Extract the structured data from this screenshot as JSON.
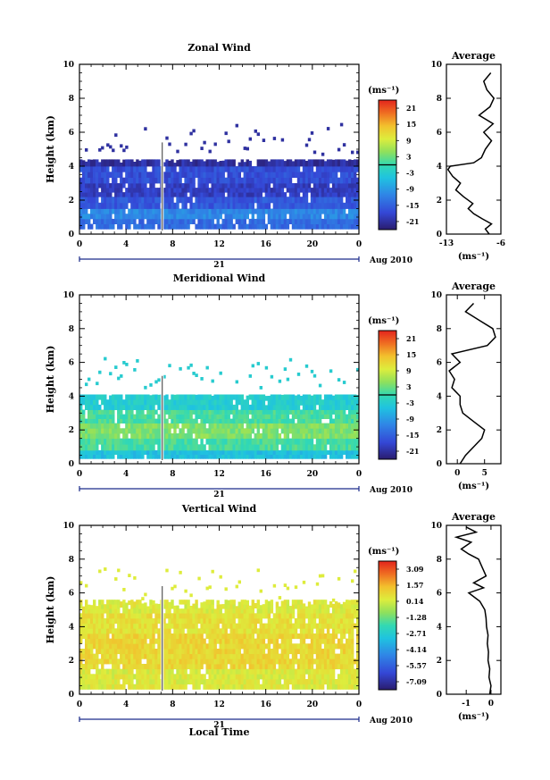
{
  "figure": {
    "xlabel": "Local Time",
    "date_label": "Aug 2010",
    "day_label": "21",
    "unit": "(ms⁻¹)",
    "unit_profile": "(ms⁻¹)",
    "avg_title": "Average"
  },
  "chart_data": [
    {
      "type": "heatmap",
      "title": "Zonal Wind",
      "ylabel": "Height (km)",
      "xlim": [
        0,
        24
      ],
      "ylim": [
        0,
        10
      ],
      "xticks": [
        "0",
        "4",
        "8",
        "12",
        "16",
        "20",
        "0"
      ],
      "yticks": [
        "0",
        "2",
        "4",
        "6",
        "8",
        "10"
      ],
      "colorbar": {
        "ticks": [
          "21",
          "15",
          "9",
          "3",
          "-3",
          "-9",
          "-15",
          "-21"
        ],
        "range": [
          -24,
          24
        ],
        "zero_line": 0
      },
      "field": [
        {
          "h0": 0.3,
          "h1": 0.9,
          "v": -14
        },
        {
          "h0": 0.9,
          "h1": 1.5,
          "v": -11
        },
        {
          "h0": 1.5,
          "h1": 2.2,
          "v": -16
        },
        {
          "h0": 2.2,
          "h1": 3.0,
          "v": -19
        },
        {
          "h0": 3.0,
          "h1": 4.0,
          "v": -17
        },
        {
          "h0": 4.0,
          "h1": 4.4,
          "v": -21
        }
      ],
      "top_height": 4.2,
      "profile": {
        "xlim": [
          -13,
          -6
        ],
        "xticks": [
          "-13",
          "-6"
        ],
        "heights": [
          0,
          0.3,
          0.6,
          0.9,
          1.2,
          1.5,
          1.8,
          2.2,
          2.6,
          3.0,
          3.4,
          3.8,
          4.0,
          4.2,
          4.5,
          5.0,
          5.5,
          6.0,
          6.5,
          7.0,
          7.5,
          8.0,
          8.5,
          9.0,
          9.5
        ],
        "values": [
          -7.5,
          -8.0,
          -7.2,
          -8.4,
          -9.5,
          -10.2,
          -9.6,
          -10.8,
          -11.8,
          -11.2,
          -12.2,
          -12.8,
          -12.5,
          -9.5,
          -8.5,
          -8.0,
          -7.2,
          -8.2,
          -7.0,
          -8.8,
          -7.4,
          -6.9,
          -7.8,
          -8.2,
          -7.3
        ]
      }
    },
    {
      "type": "heatmap",
      "title": "Meridional Wind",
      "ylabel": "Height (km)",
      "xlim": [
        0,
        24
      ],
      "ylim": [
        0,
        10
      ],
      "xticks": [
        "0",
        "4",
        "8",
        "12",
        "16",
        "20",
        "0"
      ],
      "yticks": [
        "0",
        "2",
        "4",
        "6",
        "8",
        "10"
      ],
      "colorbar": {
        "ticks": [
          "21",
          "15",
          "9",
          "3",
          "-3",
          "-9",
          "-15",
          "-21"
        ],
        "range": [
          -24,
          24
        ],
        "zero_line": 0
      },
      "field": [
        {
          "h0": 0.3,
          "h1": 0.8,
          "v": -5
        },
        {
          "h0": 0.8,
          "h1": 1.5,
          "v": 1
        },
        {
          "h0": 1.5,
          "h1": 2.4,
          "v": 4
        },
        {
          "h0": 2.4,
          "h1": 3.2,
          "v": 1
        },
        {
          "h0": 3.2,
          "h1": 4.1,
          "v": -3
        }
      ],
      "top_height": 4.0,
      "profile": {
        "xlim": [
          -2,
          8
        ],
        "xticks": [
          "0",
          "5"
        ],
        "heights": [
          0,
          0.5,
          1.0,
          1.5,
          2.0,
          2.5,
          3.0,
          3.5,
          4.0,
          4.5,
          5.0,
          5.5,
          6.0,
          6.5,
          7.0,
          7.5,
          8.0,
          8.5,
          9.0,
          9.5
        ],
        "values": [
          0.5,
          1.5,
          3.0,
          4.5,
          5.0,
          3.0,
          1.0,
          0.5,
          0.5,
          -1.0,
          -0.5,
          -1.5,
          0.5,
          -1.0,
          5.5,
          7.0,
          6.5,
          4.0,
          1.5,
          3.0
        ]
      }
    },
    {
      "type": "heatmap",
      "title": "Vertical Wind",
      "ylabel": "Height (km)",
      "xlabel": "Local Time",
      "xlim": [
        0,
        24
      ],
      "ylim": [
        0,
        10
      ],
      "xticks": [
        "0",
        "4",
        "8",
        "12",
        "16",
        "20",
        "0"
      ],
      "yticks": [
        "0",
        "2",
        "4",
        "6",
        "8",
        "10"
      ],
      "colorbar": {
        "ticks": [
          "3.09",
          "1.57",
          "0.14",
          "-1.28",
          "-2.71",
          "-4.14",
          "-5.57",
          "-7.09"
        ],
        "range": [
          -8.0,
          3.8
        ],
        "zero_line": null
      },
      "field": [
        {
          "h0": 0.3,
          "h1": 1.5,
          "v": 0.3
        },
        {
          "h0": 1.5,
          "h1": 3.6,
          "v": 0.9
        },
        {
          "h0": 3.6,
          "h1": 4.8,
          "v": 0.6
        },
        {
          "h0": 4.8,
          "h1": 5.6,
          "v": 0.3
        }
      ],
      "top_height": 5.2,
      "profile": {
        "xlim": [
          -1.8,
          0.4
        ],
        "xticks": [
          "-1",
          "0"
        ],
        "heights": [
          0,
          0.5,
          1.0,
          1.5,
          2.0,
          2.5,
          3.0,
          3.5,
          4.0,
          4.5,
          5.0,
          5.5,
          6.0,
          6.3,
          6.6,
          7.0,
          7.5,
          8.0,
          8.3,
          8.6,
          9.0,
          9.3,
          9.6,
          9.9
        ],
        "values": [
          -0.05,
          0.0,
          -0.08,
          -0.05,
          -0.12,
          -0.1,
          -0.15,
          -0.12,
          -0.18,
          -0.2,
          -0.25,
          -0.45,
          -0.9,
          -0.3,
          -0.7,
          -0.2,
          -0.35,
          -0.5,
          -0.9,
          -1.2,
          -0.8,
          -1.4,
          -0.6,
          -1.0
        ]
      }
    }
  ]
}
